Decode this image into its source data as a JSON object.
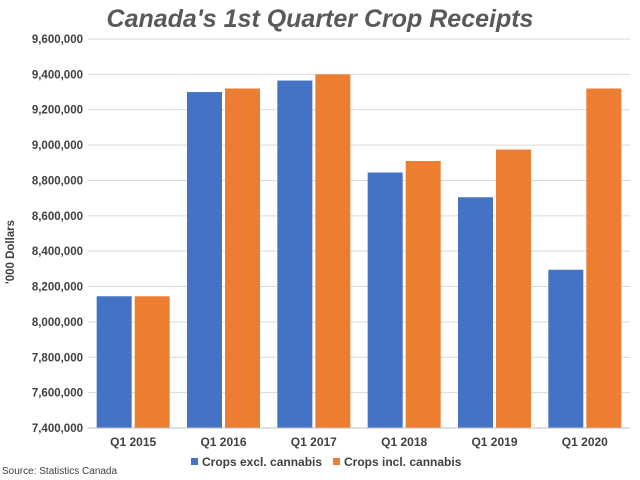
{
  "chart_data": {
    "type": "bar",
    "title": "Canada's 1st Quarter Crop Receipts",
    "ylabel": "'000 Dollars",
    "xlabel": "",
    "ylim": [
      7400000,
      9600000
    ],
    "yticks": [
      7400000,
      7600000,
      7800000,
      8000000,
      8200000,
      8400000,
      8600000,
      8800000,
      9000000,
      9200000,
      9400000,
      9600000
    ],
    "ytick_labels": [
      "7,400,000",
      "7,600,000",
      "7,800,000",
      "8,000,000",
      "8,200,000",
      "8,400,000",
      "8,600,000",
      "8,800,000",
      "9,000,000",
      "9,200,000",
      "9,400,000",
      "9,600,000"
    ],
    "categories": [
      "Q1 2015",
      "Q1 2016",
      "Q1 2017",
      "Q1 2018",
      "Q1 2019",
      "Q1 2020"
    ],
    "series": [
      {
        "name": "Crops excl. cannabis",
        "color": "#4472c4",
        "values": [
          8145000,
          9300000,
          9365000,
          8845000,
          8705000,
          8295000
        ]
      },
      {
        "name": "Crops incl. cannabis",
        "color": "#ed7d31",
        "values": [
          8145000,
          9320000,
          9400000,
          8910000,
          8975000,
          9320000
        ]
      }
    ],
    "grid": true,
    "legend_position": "bottom",
    "source": "Source: Statistics Canada"
  }
}
